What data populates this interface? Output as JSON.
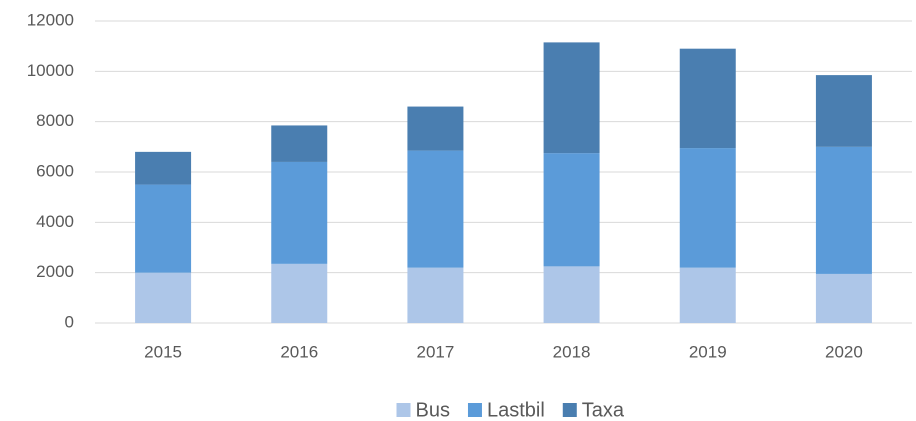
{
  "chart_data": {
    "type": "stacked_bar",
    "categories": [
      "2015",
      "2016",
      "2017",
      "2018",
      "2019",
      "2020"
    ],
    "series": [
      {
        "name": "Bus",
        "color": "#adc6e8",
        "values": [
          2000,
          2350,
          2200,
          2250,
          2200,
          1950
        ]
      },
      {
        "name": "Lastbil",
        "color": "#5b9bd9",
        "values": [
          3500,
          4050,
          4650,
          4500,
          4750,
          5050
        ]
      },
      {
        "name": "Taxa",
        "color": "#4a7eb0",
        "values": [
          1300,
          1450,
          1750,
          4400,
          3950,
          2850
        ]
      }
    ],
    "ylim": [
      0,
      12000
    ],
    "yticks": [
      0,
      2000,
      4000,
      6000,
      8000,
      10000,
      12000
    ],
    "grid": true,
    "legend": "bottom"
  }
}
